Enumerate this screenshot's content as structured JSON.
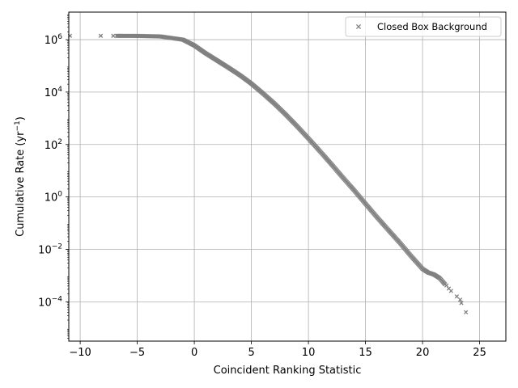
{
  "chart_data": {
    "type": "scatter",
    "title": "",
    "xlabel": "Coincident Ranking Statistic",
    "ylabel": "Cumulative Rate (yr",
    "ylabel_sup": "−1",
    "ylabel_close": ")",
    "xlim": [
      -11,
      27.3
    ],
    "ylim_log10": [
      -5.5,
      7.05
    ],
    "y_scale": "log",
    "grid": true,
    "legend_position": "top-right",
    "x_ticks": [
      -10,
      -5,
      0,
      5,
      10,
      15,
      20,
      25
    ],
    "x_tick_labels": [
      "−10",
      "−5",
      "0",
      "5",
      "10",
      "15",
      "20",
      "25"
    ],
    "y_ticks_log10": [
      -4,
      -2,
      0,
      2,
      4,
      6
    ],
    "y_tick_base": "10",
    "y_tick_exponents": [
      "−4",
      "−2",
      "0",
      "2",
      "4",
      "6"
    ],
    "marker_color": "#808080",
    "series": [
      {
        "name": "Closed Box Background",
        "marker": "x",
        "curve_x": [
          -11,
          -7,
          -5,
          -3,
          -1,
          0,
          1,
          2,
          3,
          4,
          5,
          6,
          7,
          8,
          9,
          10,
          11,
          12,
          13,
          14,
          15,
          16,
          17,
          18,
          19,
          20,
          20.5,
          21,
          21.5,
          22
        ],
        "curve_y": [
          1400000,
          1400000,
          1390000,
          1330000,
          1000000,
          600000,
          300000,
          160000,
          85000,
          44000,
          21000,
          9000,
          3700,
          1400,
          500,
          170,
          56,
          18,
          5.6,
          1.8,
          0.55,
          0.17,
          0.055,
          0.018,
          0.0055,
          0.0018,
          0.0013,
          0.0011,
          0.0008,
          0.00045
        ],
        "sparse_points": [
          {
            "x": -10.9,
            "y": 1400000
          },
          {
            "x": -8.2,
            "y": 1400000
          },
          {
            "x": -7.1,
            "y": 1400000
          },
          {
            "x": 22.1,
            "y": 0.00042
          },
          {
            "x": 22.3,
            "y": 0.00032
          },
          {
            "x": 22.5,
            "y": 0.00026
          },
          {
            "x": 23.0,
            "y": 0.00016
          },
          {
            "x": 23.3,
            "y": 0.00012
          },
          {
            "x": 23.4,
            "y": 9e-05
          },
          {
            "x": 23.8,
            "y": 4e-05
          }
        ]
      }
    ]
  }
}
